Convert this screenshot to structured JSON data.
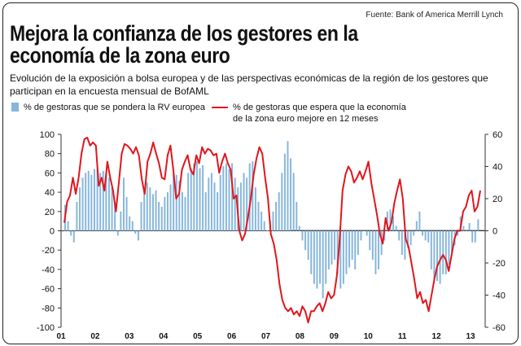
{
  "source": "Fuente: Bank of America Merrill Lynch",
  "title": "Mejora la confianza de los gestores en la economía de la zona euro",
  "subtitle": "Evolución de la exposición a bolsa europea y de las perspectivas económicas de la región de los gestores que participan en la encuesta mensual de BofAML",
  "legend": {
    "bars": "% de gestoras que se pondera la RV europea",
    "line": "% de gestoras que espera que la economía de la zona euro mejore en 12 meses"
  },
  "colors": {
    "bars": "#86b6dc",
    "line": "#e0161c",
    "axis": "#333333"
  },
  "chart_data": {
    "type": "bar+line",
    "x_ticks": [
      "01",
      "02",
      "03",
      "04",
      "05",
      "06",
      "07",
      "08",
      "09",
      "10",
      "11",
      "12",
      "13"
    ],
    "left_axis": {
      "ticks": [
        100,
        80,
        60,
        40,
        20,
        0,
        -20,
        -40,
        -60,
        -80,
        -100
      ],
      "range": [
        -100,
        100
      ]
    },
    "right_axis": {
      "ticks": [
        60,
        40,
        20,
        0,
        -20,
        -40,
        -60
      ],
      "range": [
        -60,
        60
      ]
    },
    "series": [
      {
        "name": "% de gestoras que se pondera la RV europea",
        "type": "bar",
        "axis": "left",
        "values": [
          27,
          10,
          -5,
          -12,
          30,
          45,
          55,
          60,
          62,
          58,
          64,
          63,
          60,
          62,
          58,
          55,
          45,
          30,
          -5,
          20,
          55,
          35,
          15,
          10,
          -3,
          -10,
          30,
          40,
          50,
          45,
          38,
          42,
          30,
          25,
          35,
          40,
          48,
          60,
          58,
          52,
          40,
          35,
          60,
          65,
          70,
          72,
          65,
          68,
          40,
          55,
          60,
          50,
          40,
          58,
          67,
          70,
          64,
          70,
          55,
          45,
          50,
          60,
          55,
          70,
          72,
          45,
          30,
          20,
          10,
          0,
          10,
          20,
          30,
          40,
          60,
          80,
          93,
          75,
          60,
          30,
          5,
          -10,
          -20,
          -30,
          -45,
          -55,
          -60,
          -55,
          -70,
          -55,
          -40,
          -35,
          -30,
          -45,
          -60,
          -55,
          -45,
          -38,
          -30,
          -40,
          -25,
          -10,
          0,
          -5,
          -20,
          -30,
          -45,
          -40,
          -25,
          -10,
          20,
          22,
          15,
          5,
          -10,
          -25,
          -30,
          -18,
          -15,
          -5,
          10,
          20,
          -5,
          -10,
          -12,
          -40,
          -50,
          -52,
          -55,
          -45,
          -45,
          -35,
          -22,
          -15,
          -5,
          15,
          5,
          0,
          8,
          -12,
          -12,
          12
        ]
      },
      {
        "name": "% de gestoras que espera que la economía de la zona euro mejore en 12 meses",
        "type": "line",
        "axis": "right",
        "values": [
          5,
          18,
          22,
          33,
          23,
          33,
          48,
          57,
          58,
          53,
          55,
          53,
          28,
          33,
          25,
          43,
          33,
          25,
          12,
          30,
          48,
          54,
          53,
          51,
          48,
          52,
          47,
          32,
          23,
          43,
          48,
          55,
          48,
          42,
          33,
          32,
          47,
          53,
          38,
          20,
          23,
          38,
          43,
          47,
          38,
          35,
          47,
          42,
          52,
          48,
          51,
          50,
          47,
          48,
          36,
          43,
          48,
          42,
          38,
          20,
          22,
          0,
          -6,
          -2,
          8,
          20,
          35,
          45,
          52,
          48,
          33,
          20,
          -2,
          -8,
          -18,
          -33,
          -43,
          -48,
          -50,
          -48,
          -52,
          -50,
          -53,
          -47,
          -50,
          -57,
          -50,
          -50,
          -47,
          -45,
          -50,
          -45,
          -38,
          -42,
          -40,
          -28,
          -5,
          25,
          35,
          40,
          37,
          30,
          33,
          37,
          32,
          37,
          43,
          30,
          20,
          10,
          -2,
          -8,
          8,
          0,
          5,
          17,
          25,
          32,
          20,
          -5,
          -10,
          -20,
          -30,
          -42,
          -38,
          -45,
          -43,
          -50,
          -40,
          -30,
          -22,
          -18,
          -15,
          -18,
          -25,
          -15,
          -5,
          0,
          0,
          12,
          15,
          22,
          25,
          12,
          15,
          25
        ]
      }
    ]
  }
}
